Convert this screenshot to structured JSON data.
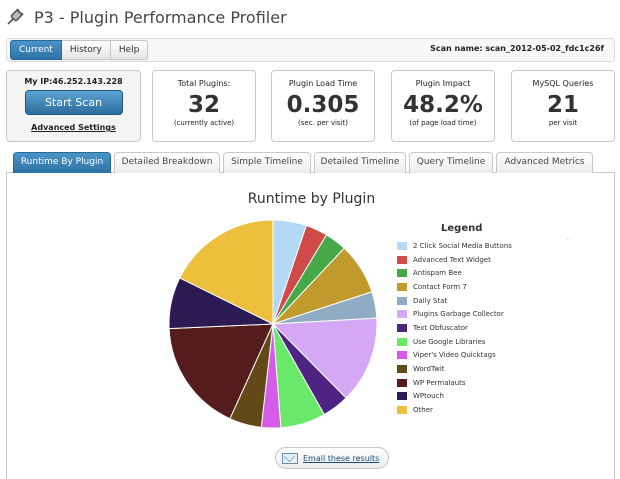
{
  "app": {
    "title": "P3 - Plugin Performance Profiler"
  },
  "toolbar": {
    "buttons": [
      {
        "label": "Current",
        "active": true
      },
      {
        "label": "History",
        "active": false
      },
      {
        "label": "Help",
        "active": false
      }
    ],
    "scan_name": "Scan name: scan_2012-05-02_fdc1c26f"
  },
  "scan_box": {
    "ip": "My IP:46.252.143.228",
    "start_label": "Start Scan",
    "advanced_label": "Advanced Settings"
  },
  "stats": [
    {
      "label": "Total Plugins:",
      "value": "32",
      "sub": "(currently active)"
    },
    {
      "label": "Plugin Load Time",
      "value": "0.305",
      "sub": "(sec. per visit)"
    },
    {
      "label": "Plugin Impact",
      "value": "48.2%",
      "sub": "(of page load time)"
    },
    {
      "label": "MySQL Queries",
      "value": "21",
      "sub": "per visit"
    }
  ],
  "tabs": [
    {
      "label": "Runtime By Plugin",
      "active": true
    },
    {
      "label": "Detailed Breakdown",
      "active": false
    },
    {
      "label": "Simple Timeline",
      "active": false
    },
    {
      "label": "Detailed Timeline",
      "active": false
    },
    {
      "label": "Query Timeline",
      "active": false
    },
    {
      "label": "Advanced Metrics",
      "active": false
    }
  ],
  "email_label": "Email these results",
  "chart_data": {
    "type": "pie",
    "title": "Runtime by Plugin",
    "legend_title": "Legend",
    "legend_position": "right",
    "start_angle_deg": 0,
    "direction": "clockwise",
    "slices": [
      {
        "name": "2 Click Social Media Buttons",
        "value": 5.2,
        "color": "#b3d9f7"
      },
      {
        "name": "Advanced Text Widget",
        "value": 3.4,
        "color": "#d04a4a"
      },
      {
        "name": "Antispam Bee",
        "value": 3.4,
        "color": "#46a846"
      },
      {
        "name": "Contact Form 7",
        "value": 8.0,
        "color": "#c09a2c"
      },
      {
        "name": "Daily Stat",
        "value": 4.1,
        "color": "#90abc4"
      },
      {
        "name": "Plugins Garbage Collector",
        "value": 13.5,
        "color": "#d4a8f5"
      },
      {
        "name": "Text Obfuscator",
        "value": 4.2,
        "color": "#4e2382"
      },
      {
        "name": "Use Google Libraries",
        "value": 7.0,
        "color": "#6ae86a"
      },
      {
        "name": "Viper's Video Quicktags",
        "value": 3.0,
        "color": "#d45ce8"
      },
      {
        "name": "WordTwit",
        "value": 5.0,
        "color": "#634818"
      },
      {
        "name": "WP Permalauts",
        "value": 17.5,
        "color": "#541c1c"
      },
      {
        "name": "WPtouch",
        "value": 8.0,
        "color": "#2e1a52"
      },
      {
        "name": "Other",
        "value": 17.7,
        "color": "#ecc03c"
      }
    ]
  }
}
